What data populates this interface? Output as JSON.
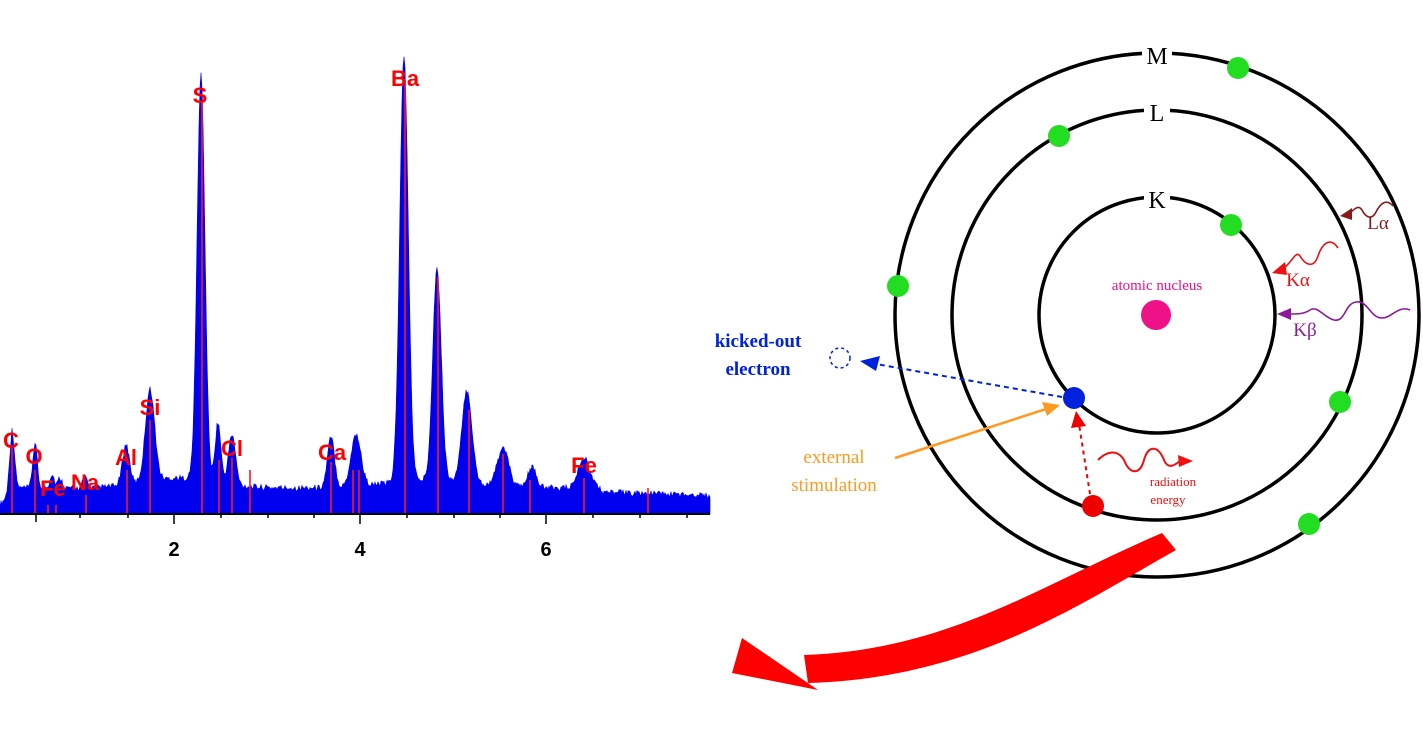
{
  "spectrum": {
    "x_ticks": [
      "2",
      "4",
      "6"
    ],
    "element_labels": [
      "C",
      "O",
      "Fe",
      "Na",
      "Al",
      "Si",
      "S",
      "Cl",
      "Ca",
      "Ba",
      "Fe"
    ],
    "colors": {
      "fill": "#0000ee",
      "marker": "#ff1a1a",
      "label": "#ff0000",
      "axis": "#000000"
    }
  },
  "atom": {
    "shells": [
      "K",
      "L",
      "M"
    ],
    "nucleus_label": "atomic nucleus",
    "kicked_out_label": [
      "kicked-out",
      "electron"
    ],
    "stimulation_label": [
      "external",
      "stimulation"
    ],
    "radiation_label": [
      "radiation",
      "energy"
    ],
    "transitions": [
      "Lα",
      "Kα",
      "Kβ"
    ],
    "colors": {
      "electron": "#22dd22",
      "nucleus": "#ee1188",
      "kicked": "#0022dd",
      "hole_filler": "#ee0000",
      "stimulation": "#ff9922",
      "l_alpha": "#8b1a1a",
      "k_alpha": "#ee1111",
      "k_beta": "#8b1a9b",
      "big_arrow": "#ff0000"
    }
  }
}
